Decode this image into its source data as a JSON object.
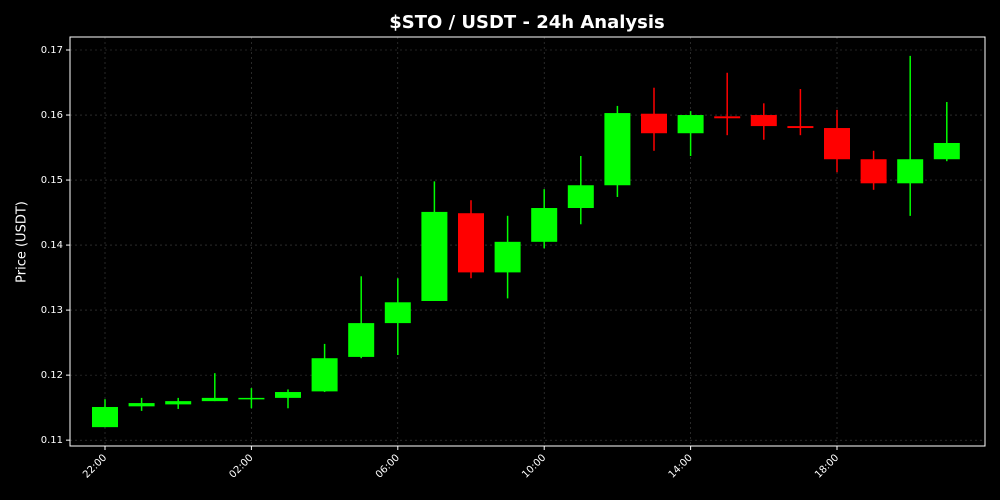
{
  "chart_data": {
    "type": "candlestick",
    "title": "$STO / USDT - 24h Analysis",
    "y_label": "Price (USDT)",
    "categories": [
      "22:00",
      null,
      null,
      null,
      "02:00",
      null,
      null,
      null,
      "06:00",
      null,
      null,
      null,
      "10:00",
      null,
      null,
      null,
      "14:00",
      null,
      null,
      null,
      "18:00",
      null,
      null,
      null
    ],
    "open": [
      0.112,
      0.1152,
      0.1155,
      0.116,
      0.1163,
      0.1165,
      0.1175,
      0.1228,
      0.128,
      0.1314,
      0.1449,
      0.1358,
      0.1405,
      0.1457,
      0.1492,
      0.1602,
      0.1572,
      0.1598,
      0.16,
      0.1583,
      0.158,
      0.1532,
      0.1495,
      0.1532
    ],
    "high": [
      0.1163,
      0.1165,
      0.1165,
      0.1203,
      0.118,
      0.1178,
      0.1248,
      0.1352,
      0.1349,
      0.1498,
      0.1469,
      0.1445,
      0.1486,
      0.1537,
      0.1614,
      0.1642,
      0.1606,
      0.1665,
      0.1618,
      0.164,
      0.1608,
      0.1545,
      0.1691,
      0.162
    ],
    "low": [
      0.112,
      0.1145,
      0.1148,
      0.116,
      0.1149,
      0.1149,
      0.1174,
      0.1226,
      0.1231,
      0.1314,
      0.1349,
      0.1318,
      0.1395,
      0.1432,
      0.1474,
      0.1545,
      0.1537,
      0.1569,
      0.1562,
      0.1569,
      0.1512,
      0.1485,
      0.1445,
      0.1529
    ],
    "close": [
      0.1151,
      0.1157,
      0.116,
      0.1165,
      0.1165,
      0.1174,
      0.1226,
      0.128,
      0.1312,
      0.1451,
      0.1358,
      0.1405,
      0.1457,
      0.1492,
      0.1603,
      0.1572,
      0.16,
      0.1595,
      0.1583,
      0.158,
      0.1532,
      0.1495,
      0.1532,
      0.1557
    ],
    "up_color": "#00ff00",
    "down_color": "#ff0000",
    "ylim": [
      0.1091,
      0.172
    ],
    "yticks": [
      0.11,
      0.12,
      0.13,
      0.14,
      0.15,
      0.16,
      0.17
    ],
    "grid": true
  }
}
